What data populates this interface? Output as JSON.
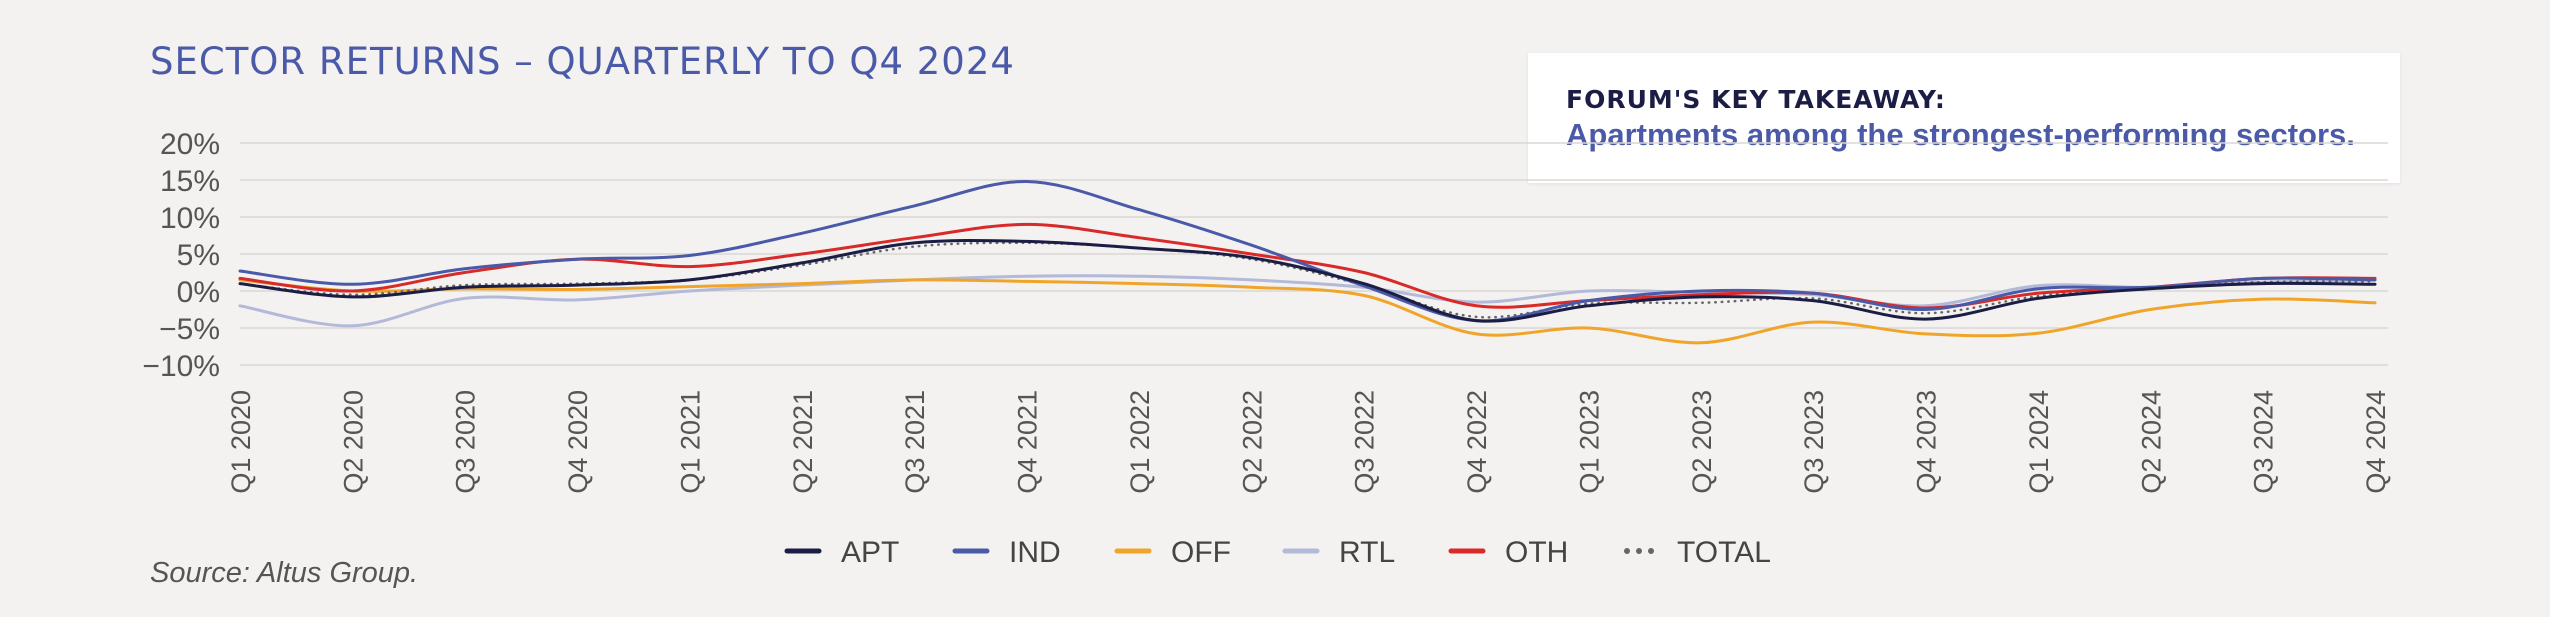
{
  "title": "SECTOR RETURNS – QUARTERLY TO Q4 2024",
  "takeaway": {
    "heading": "FORUM'S KEY TAKEAWAY:",
    "text": "Apartments among the strongest-performing sectors."
  },
  "source": "Source: Altus Group.",
  "chart_data": {
    "type": "line",
    "title": "SECTOR RETURNS – QUARTERLY TO Q4 2024",
    "xlabel": "",
    "ylabel": "",
    "categories": [
      "Q1 2020",
      "Q2 2020",
      "Q3 2020",
      "Q4 2020",
      "Q1 2021",
      "Q2 2021",
      "Q3 2021",
      "Q4 2021",
      "Q1 2022",
      "Q2 2022",
      "Q3 2022",
      "Q4 2022",
      "Q1 2023",
      "Q2 2023",
      "Q3 2023",
      "Q4 2023",
      "Q1 2024",
      "Q2 2024",
      "Q3 2024",
      "Q4 2024"
    ],
    "ylim": [
      -10,
      20
    ],
    "yticks": [
      20,
      15,
      10,
      5,
      0,
      -5,
      -10
    ],
    "ytick_labels": [
      "20%",
      "15%",
      "10%",
      "5%",
      "0%",
      "−5%",
      "−10%"
    ],
    "grid": true,
    "legend_position": "bottom",
    "series": [
      {
        "name": "APT",
        "color": "#1b1d45",
        "dash": "solid",
        "values": [
          1.0,
          -0.8,
          0.5,
          0.8,
          1.5,
          3.8,
          6.5,
          6.7,
          5.8,
          4.5,
          1.0,
          -4.0,
          -2.0,
          -0.8,
          -1.3,
          -3.8,
          -1.0,
          0.3,
          1.0,
          0.9
        ]
      },
      {
        "name": "IND",
        "color": "#4a5aa8",
        "dash": "solid",
        "values": [
          2.7,
          0.9,
          3.0,
          4.3,
          4.8,
          7.8,
          11.5,
          14.8,
          11.0,
          6.2,
          0.7,
          -4.0,
          -1.3,
          0.0,
          -0.3,
          -2.5,
          0.3,
          0.5,
          1.7,
          1.5
        ]
      },
      {
        "name": "OFF",
        "color": "#f0a52a",
        "dash": "solid",
        "values": [
          1.5,
          0.0,
          0.3,
          0.2,
          0.6,
          1.0,
          1.5,
          1.3,
          1.0,
          0.5,
          -0.6,
          -5.8,
          -5.0,
          -7.0,
          -4.2,
          -5.8,
          -5.7,
          -2.5,
          -1.1,
          -1.6
        ]
      },
      {
        "name": "RTL",
        "color": "#b3b9d8",
        "dash": "solid",
        "values": [
          -2.0,
          -4.7,
          -1.0,
          -1.2,
          0.0,
          0.8,
          1.5,
          2.0,
          2.0,
          1.5,
          0.5,
          -1.5,
          0.0,
          -0.2,
          -0.5,
          -2.0,
          0.7,
          0.5,
          1.2,
          1.5
        ]
      },
      {
        "name": "OTH",
        "color": "#d92a2a",
        "dash": "solid",
        "values": [
          1.7,
          0.0,
          2.5,
          4.3,
          3.3,
          5.0,
          7.2,
          9.0,
          7.2,
          5.0,
          2.5,
          -2.0,
          -1.3,
          -0.5,
          -0.3,
          -2.3,
          -0.3,
          0.5,
          1.7,
          1.7
        ]
      },
      {
        "name": "TOTAL",
        "color": "#666666",
        "dash": "dotted",
        "values": [
          1.0,
          -0.5,
          0.8,
          1.0,
          1.5,
          3.5,
          6.0,
          6.5,
          5.8,
          4.3,
          0.8,
          -3.5,
          -1.7,
          -1.6,
          -1.0,
          -3.0,
          -0.7,
          0.5,
          1.2,
          1.3
        ]
      }
    ]
  }
}
